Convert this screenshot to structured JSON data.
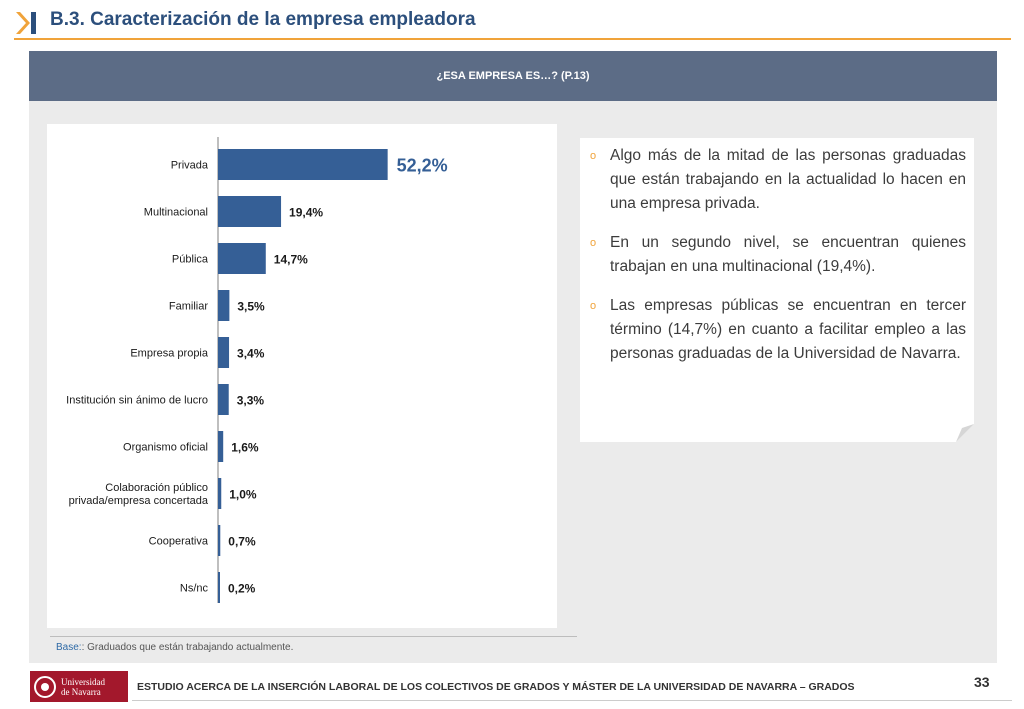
{
  "header": {
    "title": "B.3. Caracterización de la empresa empleadora",
    "icon": "section-marker-icon",
    "accent_color": "#f0a33a",
    "title_color": "#2c4f7c"
  },
  "banner": {
    "question": "¿ESA EMPRESA ES…? (P.13)",
    "color": "#5c6c86"
  },
  "chart_data": {
    "type": "bar",
    "orientation": "horizontal",
    "categories": [
      "Privada",
      "Multinacional",
      "Pública",
      "Familiar",
      "Empresa propia",
      "Institución sin ánimo de lucro",
      "Organismo oficial",
      "Colaboración público privada/empresa concertada",
      "Cooperativa",
      "Ns/nc"
    ],
    "values": [
      52.2,
      19.4,
      14.7,
      3.5,
      3.4,
      3.3,
      1.6,
      1.0,
      0.7,
      0.2
    ],
    "labels": [
      "52,2%",
      "19,4%",
      "14,7%",
      "3,5%",
      "3,4%",
      "3,3%",
      "1,6%",
      "1,0%",
      "0,7%",
      "0,2%"
    ],
    "bar_color": "#355f96",
    "grid": false
  },
  "commentary": {
    "bullets": [
      "Algo más de la mitad de las personas graduadas que están trabajando en la actualidad lo hacen en una empresa privada.",
      "En un segundo nivel, se encuentran quienes trabajan en una multinacional (19,4%).",
      "Las empresas públicas se encuentran en tercer término (14,7%) en cuanto a facilitar empleo a las personas graduadas de la Universidad de Navarra."
    ]
  },
  "base_note": {
    "label": "Base:",
    "text": ": Graduados que están trabajando actualmente."
  },
  "footer": {
    "logo_line1": "Universidad",
    "logo_line2": "de Navarra",
    "logo_color": "#a3182c",
    "study_title": "ESTUDIO ACERCA DE LA INSERCIÓN LABORAL DE LOS COLECTIVOS DE GRADOS Y MÁSTER DE LA UNIVERSIDAD DE NAVARRA – GRADOS",
    "page_number": "33"
  }
}
